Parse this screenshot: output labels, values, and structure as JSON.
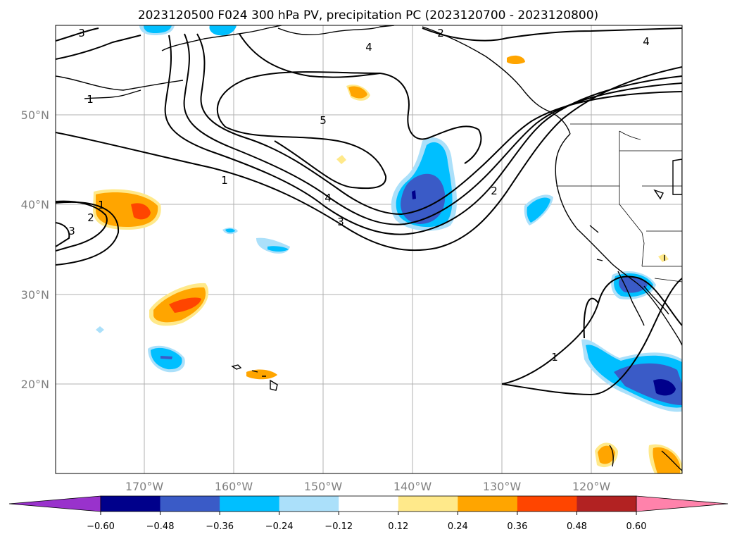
{
  "title": "2023120500 F024 300 hPa PV, precipitation PC (2023120700 - 2023120800)",
  "lat_labels": [
    "50°N",
    "40°N",
    "30°N",
    "20°N"
  ],
  "lon_labels": [
    "170°W",
    "160°W",
    "150°W",
    "140°W",
    "130°W",
    "120°W"
  ],
  "colorbar": {
    "ticks": [
      "−0.60",
      "−0.48",
      "−0.36",
      "−0.24",
      "−0.12",
      "0.12",
      "0.24",
      "0.36",
      "0.48",
      "0.60"
    ],
    "colors": [
      "#9932cc",
      "#00008b",
      "#3a5bc7",
      "#00bfff",
      "#abe0fa",
      "#ffffff",
      "#ffe98a",
      "#ffa500",
      "#ff4500",
      "#b22222",
      "#ff82ab"
    ]
  },
  "contour_labels": [
    "3",
    "1",
    "4",
    "5",
    "1",
    "4",
    "3",
    "2",
    "1",
    "2",
    "3",
    "2",
    "4",
    "1"
  ],
  "colors": {
    "contour": "#000000",
    "grid": "#b0b0b0",
    "axis_text": "#808080"
  }
}
